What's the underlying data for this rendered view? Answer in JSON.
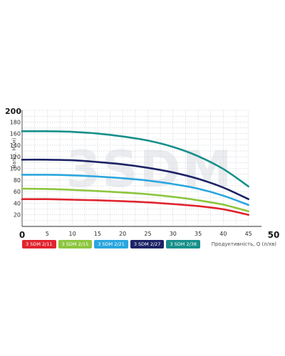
{
  "chart_data": {
    "type": "line",
    "watermark": "3SDM",
    "ylabel": "Напір, H (м)",
    "xlabel": "Продуктивність, Q (л/хв)",
    "xlim": [
      0,
      50
    ],
    "ylim": [
      0,
      200
    ],
    "x_ticks": [
      {
        "v": 0,
        "label": "0",
        "big": true
      },
      {
        "v": 5,
        "label": "5"
      },
      {
        "v": 10,
        "label": "10"
      },
      {
        "v": 15,
        "label": "15"
      },
      {
        "v": 20,
        "label": "20"
      },
      {
        "v": 25,
        "label": "25"
      },
      {
        "v": 30,
        "label": "30"
      },
      {
        "v": 35,
        "label": "35"
      },
      {
        "v": 40,
        "label": "40"
      },
      {
        "v": 45,
        "label": "45"
      },
      {
        "v": 50,
        "label": "50",
        "big": true
      }
    ],
    "y_ticks": [
      {
        "v": 20,
        "label": "20"
      },
      {
        "v": 40,
        "label": "40"
      },
      {
        "v": 60,
        "label": "60"
      },
      {
        "v": 80,
        "label": "80"
      },
      {
        "v": 100,
        "label": "100"
      },
      {
        "v": 120,
        "label": "120"
      },
      {
        "v": 140,
        "label": "140"
      },
      {
        "v": 160,
        "label": "160"
      },
      {
        "v": 180,
        "label": "180"
      },
      {
        "v": 200,
        "label": "200",
        "big": true
      }
    ],
    "grid": true,
    "legend_position": "bottom-left",
    "series": [
      {
        "name": "3 SDM 2/11",
        "color": "#e0242f",
        "x": [
          0,
          5,
          10,
          15,
          20,
          25,
          30,
          35,
          40,
          45
        ],
        "y": [
          47,
          47,
          46,
          45,
          43.5,
          41.5,
          38.5,
          35,
          29.5,
          20
        ]
      },
      {
        "name": "3 SDM 2/15",
        "color": "#8cc63e",
        "x": [
          0,
          5,
          10,
          15,
          20,
          25,
          30,
          35,
          40,
          45
        ],
        "y": [
          65,
          64.5,
          63,
          61,
          58.5,
          55.5,
          51,
          45,
          37.5,
          26
        ]
      },
      {
        "name": "3 SDM 2/21",
        "color": "#2aa6de",
        "x": [
          0,
          5,
          10,
          15,
          20,
          25,
          30,
          35,
          40,
          45
        ],
        "y": [
          89,
          89,
          88,
          86,
          83,
          79,
          73,
          65,
          53,
          37
        ]
      },
      {
        "name": "3 SDM 2/27",
        "color": "#1d2366",
        "x": [
          0,
          5,
          10,
          15,
          20,
          25,
          30,
          35,
          40,
          45
        ],
        "y": [
          115,
          115,
          114,
          111,
          107,
          101,
          93,
          82,
          67,
          47
        ]
      },
      {
        "name": "3 SDM 2/38",
        "color": "#178f8b",
        "x": [
          0,
          5,
          10,
          15,
          20,
          25,
          30,
          35,
          40,
          45
        ],
        "y": [
          164,
          164,
          163,
          160,
          155,
          148,
          137,
          121,
          99,
          69
        ]
      }
    ]
  }
}
